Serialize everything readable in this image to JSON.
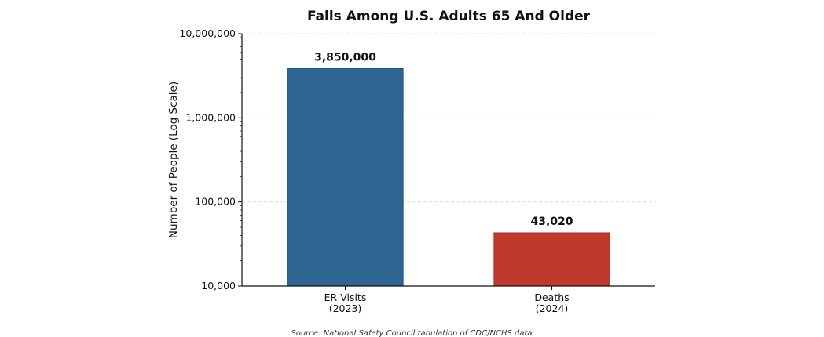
{
  "chart_data": {
    "type": "bar",
    "title": "Falls Among U.S. Adults 65 And Older",
    "ylabel": "Number of People (Log Scale)",
    "xlabel": "",
    "yscale": "log",
    "ylim": [
      10000,
      10000000
    ],
    "yticks": [
      {
        "value": 10000,
        "label": "10,000"
      },
      {
        "value": 100000,
        "label": "100,000"
      },
      {
        "value": 1000000,
        "label": "1,000,000"
      },
      {
        "value": 10000000,
        "label": "10,000,000"
      }
    ],
    "grid": "horizontal-dashed",
    "categories": [
      {
        "lines": [
          "ER Visits",
          "(2023)"
        ]
      },
      {
        "lines": [
          "Deaths",
          "(2024)"
        ]
      }
    ],
    "values": [
      3850000,
      43020
    ],
    "value_labels": [
      "3,850,000",
      "43,020"
    ],
    "colors": [
      "#2e6591",
      "#c0392b"
    ],
    "edge_colors": [
      "#24527a",
      "#a93226"
    ],
    "source": "Source: National Safety Council tabulation of CDC/NCHS data"
  }
}
